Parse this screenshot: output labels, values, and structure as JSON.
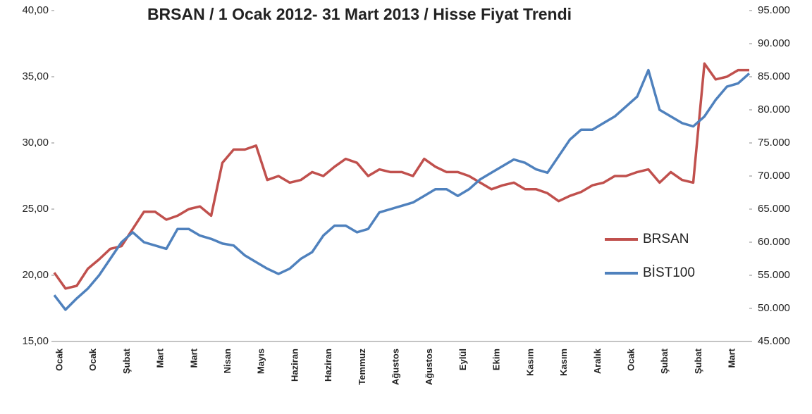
{
  "chart_data": {
    "type": "line",
    "title": "BRSAN / 1 Ocak 2012-  31 Mart 2013 / Hisse Fiyat Trendi",
    "categories": [
      "Ocak",
      null,
      null,
      "Ocak",
      null,
      null,
      "Şubat",
      null,
      null,
      "Mart",
      null,
      null,
      "Mart",
      null,
      null,
      "Nisan",
      null,
      null,
      "Mayıs",
      null,
      null,
      "Haziran",
      null,
      null,
      "Haziran",
      null,
      null,
      "Temmuz",
      null,
      null,
      "Ağustos",
      null,
      null,
      "Ağustos",
      null,
      null,
      "Eylül",
      null,
      null,
      "Ekim",
      null,
      null,
      "Kasım",
      null,
      null,
      "Kasım",
      null,
      null,
      "Aralık",
      null,
      null,
      "Ocak",
      null,
      null,
      "Şubat",
      null,
      null,
      "Şubat",
      null,
      null,
      "Mart",
      null,
      null
    ],
    "series": [
      {
        "name": "BRSAN",
        "color": "#c0504d",
        "axis": "y",
        "values": [
          20.2,
          19.0,
          19.2,
          20.5,
          21.2,
          22.0,
          22.2,
          23.5,
          24.8,
          24.8,
          24.2,
          24.5,
          25.0,
          25.2,
          24.5,
          28.5,
          29.5,
          29.5,
          29.8,
          27.2,
          27.5,
          27.0,
          27.2,
          27.8,
          27.5,
          28.2,
          28.8,
          28.5,
          27.5,
          28.0,
          27.8,
          27.8,
          27.5,
          28.8,
          28.2,
          27.8,
          27.8,
          27.5,
          27.0,
          26.5,
          26.8,
          27.0,
          26.5,
          26.5,
          26.2,
          25.6,
          26.0,
          26.3,
          26.8,
          27.0,
          27.5,
          27.5,
          27.8,
          28.0,
          27.0,
          27.8,
          27.2,
          27.0,
          36.0,
          34.8,
          35.0,
          35.5,
          35.5
        ]
      },
      {
        "name": "BİST100",
        "color": "#4f81bd",
        "axis": "y2",
        "values": [
          52000,
          49800,
          51500,
          53000,
          55000,
          57500,
          60000,
          61500,
          60000,
          59500,
          59000,
          62000,
          62000,
          61000,
          60500,
          59800,
          59500,
          58000,
          57000,
          56000,
          55200,
          56000,
          57500,
          58500,
          61000,
          62500,
          62500,
          61500,
          62000,
          64500,
          65000,
          65500,
          66000,
          67000,
          68000,
          68000,
          67000,
          68000,
          69500,
          70500,
          71500,
          72500,
          72000,
          71000,
          70500,
          73000,
          75500,
          77000,
          77000,
          78000,
          79000,
          80500,
          82000,
          86000,
          80000,
          79000,
          78000,
          77500,
          79000,
          81500,
          83500,
          84000,
          85500
        ]
      }
    ],
    "ylim": [
      15,
      40
    ],
    "yticks": [
      {
        "value": 15,
        "label": "15,00"
      },
      {
        "value": 20,
        "label": "20,00"
      },
      {
        "value": 25,
        "label": "25,00"
      },
      {
        "value": 30,
        "label": "30,00"
      },
      {
        "value": 35,
        "label": "35,00"
      },
      {
        "value": 40,
        "label": "40,00"
      }
    ],
    "y2lim": [
      45000,
      95000
    ],
    "y2ticks": [
      {
        "value": 45000,
        "label": "45.000"
      },
      {
        "value": 50000,
        "label": "50.000"
      },
      {
        "value": 55000,
        "label": "55.000"
      },
      {
        "value": 60000,
        "label": "60.000"
      },
      {
        "value": 65000,
        "label": "65.000"
      },
      {
        "value": 70000,
        "label": "70.000"
      },
      {
        "value": 75000,
        "label": "75.000"
      },
      {
        "value": 80000,
        "label": "80.000"
      },
      {
        "value": 85000,
        "label": "85.000"
      },
      {
        "value": 90000,
        "label": "90.000"
      },
      {
        "value": 95000,
        "label": "95.000"
      }
    ],
    "legend": "right"
  }
}
